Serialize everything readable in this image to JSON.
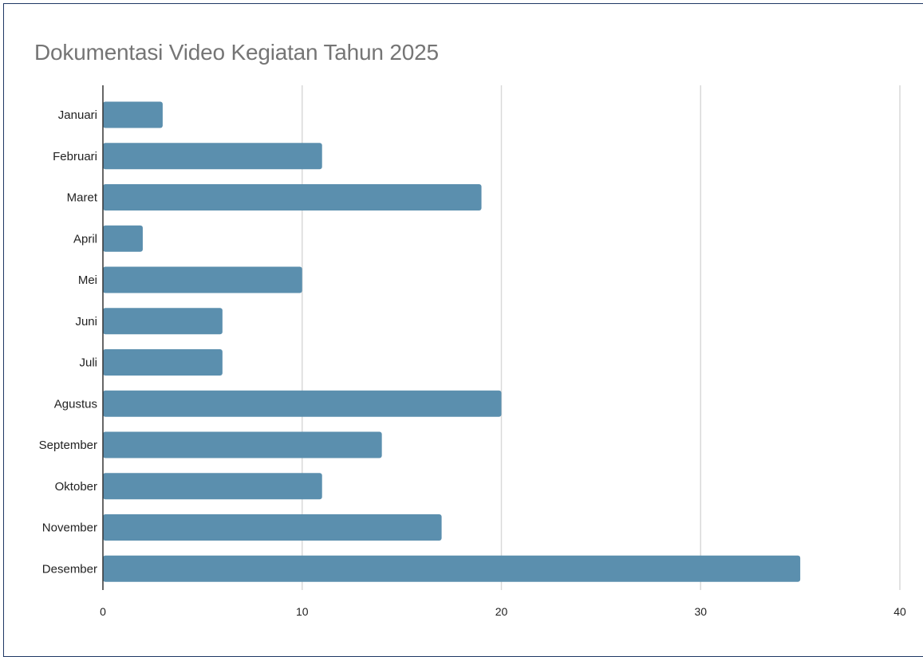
{
  "chart_data": {
    "type": "bar",
    "orientation": "horizontal",
    "title": "Dokumentasi Video Kegiatan Tahun 2025",
    "categories": [
      "Januari",
      "Februari",
      "Maret",
      "April",
      "Mei",
      "Juni",
      "Juli",
      "Agustus",
      "September",
      "Oktober",
      "November",
      "Desember"
    ],
    "values": [
      3,
      11,
      19,
      2,
      10,
      6,
      6,
      20,
      14,
      11,
      17,
      35
    ],
    "xlim": [
      0,
      40
    ],
    "xticks": [
      0,
      10,
      20,
      30,
      40
    ],
    "grid": true,
    "legend": "none",
    "bar_color": "#5b8fae",
    "grid_color": "#d9d9d9",
    "axis_color": "#333333"
  }
}
